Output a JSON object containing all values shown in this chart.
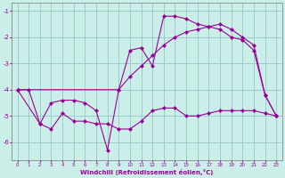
{
  "xlabel": "Windchill (Refroidissement éolien,°C)",
  "background_color": "#cceee8",
  "grid_color": "#99cccc",
  "line_color": "#990099",
  "xlim": [
    -0.5,
    23.5
  ],
  "ylim": [
    -6.7,
    -0.7
  ],
  "yticks": [
    -6,
    -5,
    -4,
    -3,
    -2,
    -1
  ],
  "xticks": [
    0,
    1,
    2,
    3,
    4,
    5,
    6,
    7,
    8,
    9,
    10,
    11,
    12,
    13,
    14,
    15,
    16,
    17,
    18,
    19,
    20,
    21,
    22,
    23
  ],
  "line1_x": [
    0,
    1,
    2,
    3,
    4,
    5,
    6,
    7,
    8,
    9,
    10,
    11,
    12,
    13,
    14,
    15,
    16,
    17,
    18,
    19,
    20,
    21,
    22,
    23
  ],
  "line1_y": [
    -4.0,
    -4.0,
    -5.3,
    -4.5,
    -4.4,
    -4.4,
    -4.5,
    -4.8,
    -6.3,
    -4.0,
    -2.5,
    -2.4,
    -3.1,
    -1.2,
    -1.2,
    -1.3,
    -1.5,
    -1.6,
    -1.7,
    -2.0,
    -2.1,
    -2.5,
    -4.2,
    -5.0
  ],
  "line2_x": [
    0,
    2,
    3,
    4,
    5,
    6,
    7,
    8,
    9,
    10,
    11,
    12,
    13,
    14,
    15,
    16,
    17,
    18,
    19,
    20,
    21,
    22,
    23
  ],
  "line2_y": [
    -4.0,
    -5.3,
    -5.5,
    -4.9,
    -5.2,
    -5.2,
    -5.3,
    -5.3,
    -5.5,
    -5.5,
    -5.2,
    -4.8,
    -4.7,
    -4.7,
    -5.0,
    -5.0,
    -4.9,
    -4.8,
    -4.8,
    -4.8,
    -4.8,
    -4.9,
    -5.0
  ],
  "line3_x": [
    0,
    9,
    10,
    11,
    12,
    13,
    14,
    15,
    16,
    17,
    18,
    19,
    20,
    21,
    22,
    23
  ],
  "line3_y": [
    -4.0,
    -4.0,
    -3.5,
    -3.1,
    -2.7,
    -2.3,
    -2.0,
    -1.8,
    -1.7,
    -1.6,
    -1.5,
    -1.7,
    -2.0,
    -2.3,
    -4.2,
    -5.0
  ]
}
